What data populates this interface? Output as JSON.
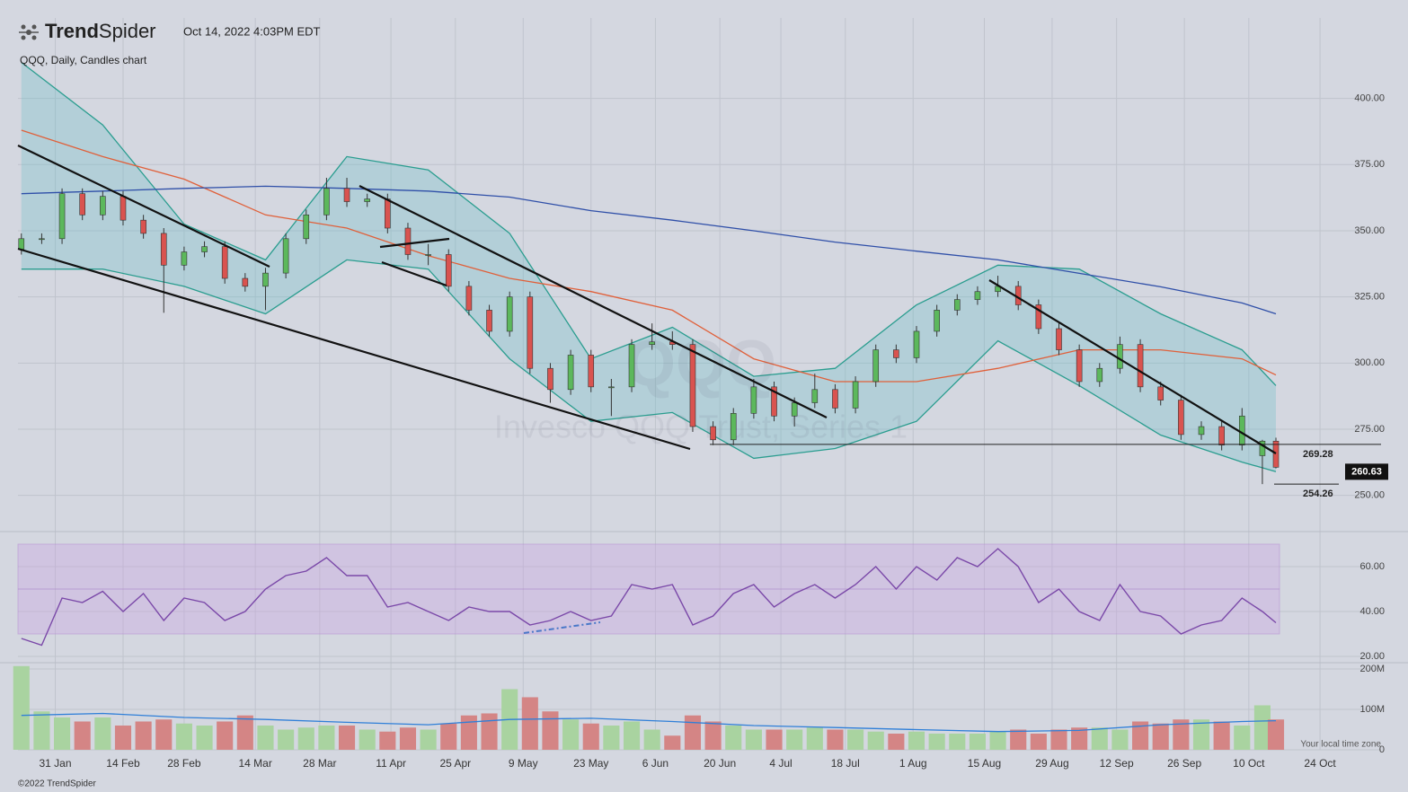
{
  "header": {
    "brand": [
      "Trend",
      "Spider"
    ],
    "timestamp": "Oct 14, 2022 4:03PM EDT",
    "symbol_line": "QQQ, Daily, Candles chart"
  },
  "footer": {
    "copyright": "©2022 TrendSpider",
    "timezone": "Your local time zone"
  },
  "chart_data": [
    {
      "type": "candlestick",
      "watermark": [
        "QQQ",
        "Invesco QQQ Trust, Series 1"
      ],
      "up_color": "#5cb85c",
      "down_color": "#d9534f",
      "xlim": [
        -0.5,
        200.5
      ],
      "ylim": [
        237,
        430.4
      ],
      "grid": true,
      "xticks": [
        {
          "value": 5,
          "label": "31 Jan"
        },
        {
          "value": 15,
          "label": "14 Feb"
        },
        {
          "value": 24,
          "label": "28 Feb"
        },
        {
          "value": 34.5,
          "label": "14 Mar"
        },
        {
          "value": 44,
          "label": "28 Mar"
        },
        {
          "value": 54.5,
          "label": "11 Apr"
        },
        {
          "value": 64,
          "label": "25 Apr"
        },
        {
          "value": 74,
          "label": "9 May"
        },
        {
          "value": 84,
          "label": "23 May"
        },
        {
          "value": 93.5,
          "label": "6 Jun"
        },
        {
          "value": 103,
          "label": "20 Jun"
        },
        {
          "value": 112,
          "label": "4 Jul"
        },
        {
          "value": 121.5,
          "label": "18 Jul"
        },
        {
          "value": 131.5,
          "label": "1 Aug"
        },
        {
          "value": 142,
          "label": "15 Aug"
        },
        {
          "value": 152,
          "label": "29 Aug"
        },
        {
          "value": 161.5,
          "label": "12 Sep"
        },
        {
          "value": 171.5,
          "label": "26 Sep"
        },
        {
          "value": 181,
          "label": "10 Oct"
        },
        {
          "value": 191.5,
          "label": "24 Oct"
        }
      ],
      "yticks": [
        {
          "value": 250,
          "label": "250.00"
        },
        {
          "value": 275,
          "label": "275.00"
        },
        {
          "value": 300,
          "label": "300.00"
        },
        {
          "value": 325,
          "label": "325.00"
        },
        {
          "value": 350,
          "label": "350.00"
        },
        {
          "value": 375,
          "label": "375.00"
        },
        {
          "value": 400,
          "label": "400.00"
        }
      ],
      "x": [
        0,
        3,
        6,
        9,
        12,
        15,
        18,
        21,
        24,
        27,
        30,
        33,
        36,
        39,
        42,
        45,
        48,
        51,
        54,
        57,
        60,
        63,
        66,
        69,
        72,
        75,
        78,
        81,
        84,
        87,
        90,
        93,
        96,
        99,
        102,
        105,
        108,
        111,
        114,
        117,
        120,
        123,
        126,
        129,
        132,
        135,
        138,
        141,
        144,
        147,
        150,
        153,
        156,
        159,
        162,
        165,
        168,
        171,
        174,
        177,
        180,
        183,
        185
      ],
      "open": [
        343,
        347,
        347,
        364,
        356,
        363,
        354,
        349,
        337,
        342,
        344,
        332,
        329,
        334,
        347,
        356,
        366,
        361,
        362,
        351,
        341,
        341,
        329,
        320,
        312,
        325,
        298,
        290,
        303,
        291,
        291,
        307,
        308,
        307,
        276,
        271,
        281,
        291,
        280,
        285,
        290,
        283,
        293,
        305,
        302,
        312,
        320,
        324,
        327,
        329,
        322,
        313,
        305,
        293,
        298,
        307,
        291,
        286,
        273,
        276,
        269,
        265,
        270.5
      ],
      "high": [
        349,
        349,
        366,
        366,
        365,
        365,
        356,
        351,
        344,
        346,
        346,
        334,
        336,
        349,
        358,
        370,
        370,
        364,
        364,
        353,
        345,
        343,
        331,
        322,
        327,
        327,
        300,
        305,
        305,
        294,
        309,
        315,
        312,
        309,
        278,
        283,
        294,
        293,
        287,
        296,
        292,
        295,
        307,
        307,
        314,
        322,
        326,
        329,
        333,
        331,
        324,
        315,
        307,
        300,
        310,
        309,
        293,
        288,
        278,
        278,
        283,
        271,
        271.8
      ],
      "low": [
        341,
        345,
        345,
        354,
        354,
        352,
        347,
        319,
        335,
        340,
        330,
        327,
        320,
        332,
        345,
        354,
        359,
        359,
        349,
        339,
        337,
        327,
        318,
        310,
        310,
        296,
        285,
        288,
        289,
        280,
        289,
        305,
        305,
        274,
        269,
        269,
        279,
        278,
        276,
        283,
        281,
        281,
        291,
        300,
        300,
        310,
        318,
        322,
        325,
        320,
        311,
        303,
        291,
        291,
        296,
        289,
        284,
        271,
        271,
        267,
        267,
        254.26,
        260.2
      ],
      "close": [
        347,
        347,
        364,
        356,
        363,
        354,
        349,
        337,
        342,
        344,
        332,
        329,
        334,
        347,
        356,
        366,
        361,
        362,
        351,
        341,
        341,
        329,
        320,
        312,
        325,
        298,
        290,
        303,
        291,
        291,
        307,
        308,
        307,
        276,
        271,
        281,
        291,
        280,
        285,
        290,
        283,
        293,
        305,
        302,
        312,
        320,
        324,
        327,
        329,
        322,
        313,
        305,
        293,
        298,
        307,
        291,
        286,
        273,
        276,
        269,
        280,
        270.5,
        260.63
      ],
      "bollinger": {
        "color": "#2a9d8f",
        "fill": "rgba(110,190,200,0.32)",
        "x": [
          0,
          12,
          24,
          36,
          48,
          60,
          72,
          84,
          96,
          108,
          120,
          132,
          144,
          156,
          168,
          180,
          185
        ],
        "upper": [
          413.6,
          390,
          352.5,
          339,
          378,
          373,
          349,
          301.6,
          313.5,
          295,
          298,
          322,
          337,
          335.5,
          318.6,
          305,
          291.5
        ],
        "lower": [
          335.5,
          335.5,
          329,
          318.6,
          339,
          335.5,
          301.6,
          278,
          281.3,
          264,
          267.7,
          278,
          308.4,
          291.5,
          272.8,
          262.6,
          259
        ]
      },
      "series": [
        {
          "color": "#e0603a",
          "x": [
            0,
            12,
            24,
            36,
            48,
            60,
            72,
            84,
            96,
            108,
            120,
            132,
            144,
            156,
            168,
            180,
            185
          ],
          "values": [
            388,
            378,
            369.5,
            356,
            351,
            340.6,
            332,
            327,
            320,
            301.6,
            293,
            293,
            298,
            305,
            305,
            301.6,
            295.5
          ]
        },
        {
          "color": "#2f4fa8",
          "x": [
            0,
            12,
            24,
            36,
            48,
            60,
            72,
            84,
            96,
            108,
            120,
            132,
            144,
            156,
            168,
            180,
            185
          ],
          "values": [
            364,
            365,
            366,
            366.8,
            366,
            365,
            362.7,
            357.6,
            354,
            350,
            345.7,
            342.3,
            339,
            333.9,
            328.8,
            322.7,
            318.6
          ]
        }
      ],
      "levels": [
        269.28,
        254.26
      ],
      "last_price": 260.63
    },
    {
      "type": "line",
      "color": "#7a48a8",
      "ylim": [
        17.6,
        74.4
      ],
      "band": [
        30,
        70
      ],
      "midline": 50,
      "yticks": [
        {
          "value": 20,
          "label": "20.00"
        },
        {
          "value": 40,
          "label": "40.00"
        },
        {
          "value": 60,
          "label": "60.00"
        }
      ],
      "x": [
        0,
        3,
        6,
        9,
        12,
        15,
        18,
        21,
        24,
        27,
        30,
        33,
        36,
        39,
        42,
        45,
        48,
        51,
        54,
        57,
        60,
        63,
        66,
        69,
        72,
        75,
        78,
        81,
        84,
        87,
        90,
        93,
        96,
        99,
        102,
        105,
        108,
        111,
        114,
        117,
        120,
        123,
        126,
        129,
        132,
        135,
        138,
        141,
        144,
        147,
        150,
        153,
        156,
        159,
        162,
        165,
        168,
        171,
        174,
        177,
        180,
        183,
        185
      ],
      "values": [
        28,
        25,
        46,
        44,
        49,
        40,
        48,
        36,
        46,
        44,
        36,
        40,
        50,
        56,
        58,
        64,
        56,
        56,
        42,
        44,
        40,
        36,
        42,
        40,
        40,
        34,
        36,
        40,
        36,
        38,
        52,
        50,
        52,
        34,
        38,
        48,
        52,
        42,
        48,
        52,
        46,
        52,
        60,
        50,
        60,
        54,
        64,
        60,
        68,
        60,
        44,
        50,
        40,
        36,
        52,
        40,
        38,
        30,
        34,
        36,
        46,
        40,
        35
      ]
    },
    {
      "type": "bar",
      "up_color": "#a9d3a0",
      "down_color": "#d48585",
      "ma_color": "#2f7fd8",
      "ylim": [
        0,
        211000000
      ],
      "yticks": [
        0,
        {
          "value": 100000000,
          "label": "100M"
        },
        {
          "value": 200000000,
          "label": "200M"
        }
      ],
      "x": [
        0,
        3,
        6,
        9,
        12,
        15,
        18,
        21,
        24,
        27,
        30,
        33,
        36,
        39,
        42,
        45,
        48,
        51,
        54,
        57,
        60,
        63,
        66,
        69,
        72,
        75,
        78,
        81,
        84,
        87,
        90,
        93,
        96,
        99,
        102,
        105,
        108,
        111,
        114,
        117,
        120,
        123,
        126,
        129,
        132,
        135,
        138,
        141,
        144,
        147,
        150,
        153,
        156,
        159,
        162,
        165,
        168,
        171,
        174,
        177,
        180,
        183,
        185
      ],
      "values": [
        207000000,
        95000000,
        80000000,
        70000000,
        80000000,
        60000000,
        70000000,
        75000000,
        65000000,
        60000000,
        70000000,
        85000000,
        60000000,
        50000000,
        55000000,
        60000000,
        60000000,
        50000000,
        45000000,
        55000000,
        50000000,
        65000000,
        85000000,
        90000000,
        150000000,
        130000000,
        95000000,
        75000000,
        65000000,
        60000000,
        70000000,
        50000000,
        35000000,
        85000000,
        70000000,
        60000000,
        50000000,
        50000000,
        50000000,
        55000000,
        50000000,
        50000000,
        45000000,
        40000000,
        45000000,
        40000000,
        40000000,
        40000000,
        45000000,
        50000000,
        40000000,
        50000000,
        55000000,
        55000000,
        50000000,
        70000000,
        65000000,
        75000000,
        75000000,
        70000000,
        60000000,
        110000000,
        75000000
      ],
      "ma_x": [
        0,
        12,
        24,
        36,
        48,
        60,
        72,
        84,
        96,
        108,
        120,
        132,
        144,
        156,
        168,
        180,
        185
      ],
      "ma": [
        85000000,
        90000000,
        80000000,
        75000000,
        68000000,
        62000000,
        75000000,
        78000000,
        70000000,
        60000000,
        55000000,
        50000000,
        45000000,
        48000000,
        62000000,
        70000000,
        72000000
      ]
    }
  ]
}
